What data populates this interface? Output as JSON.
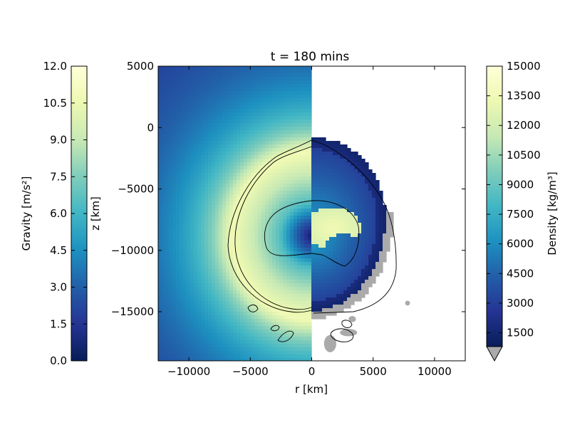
{
  "chart_data": {
    "type": "heatmap",
    "title": "t =  180 mins",
    "xlabel": "r [km]",
    "ylabel": "z [km]",
    "xlim": [
      -12500,
      12500
    ],
    "ylim": [
      -19000,
      5000
    ],
    "x_ticks": [
      -10000,
      -5000,
      0,
      5000,
      10000
    ],
    "x_tick_labels": [
      "−10000",
      "−5000",
      "0",
      "5000",
      "10000"
    ],
    "y_ticks": [
      5000,
      0,
      -5000,
      -10000,
      -15000
    ],
    "y_tick_labels": [
      "5000",
      "0",
      "−5000",
      "−10000",
      "−15000"
    ],
    "left_panel": {
      "quantity": "Gravity",
      "side": "r < 0"
    },
    "right_panel": {
      "quantity": "Density",
      "side": "r > 0"
    },
    "colorbar_gravity": {
      "label": "Gravity [m/s²]",
      "range": [
        0,
        12
      ],
      "ticks": [
        0.0,
        1.5,
        3.0,
        4.5,
        6.0,
        7.5,
        9.0,
        10.5,
        12.0
      ],
      "tick_labels": [
        "0.0",
        "1.5",
        "3.0",
        "4.5",
        "6.0",
        "7.5",
        "9.0",
        "10.5",
        "12.0"
      ],
      "placement": "left"
    },
    "colorbar_density": {
      "label": "Density [kg/m³]",
      "range": [
        800,
        15000
      ],
      "ticks": [
        1500,
        3000,
        4500,
        6000,
        7500,
        9000,
        10500,
        12000,
        13500,
        15000
      ],
      "tick_labels": [
        "1500",
        "3000",
        "4500",
        "6000",
        "7500",
        "9000",
        "10500",
        "12000",
        "13500",
        "15000"
      ],
      "under_color": "#aaaaaa",
      "placement": "right"
    },
    "colormap": "YlGnBu_r",
    "colormap_stops": [
      "#081d58",
      "#253494",
      "#225ea8",
      "#1d91c0",
      "#41b6c4",
      "#7fcdbb",
      "#c7e9b4",
      "#edf8b1",
      "#ffffd9"
    ]
  }
}
